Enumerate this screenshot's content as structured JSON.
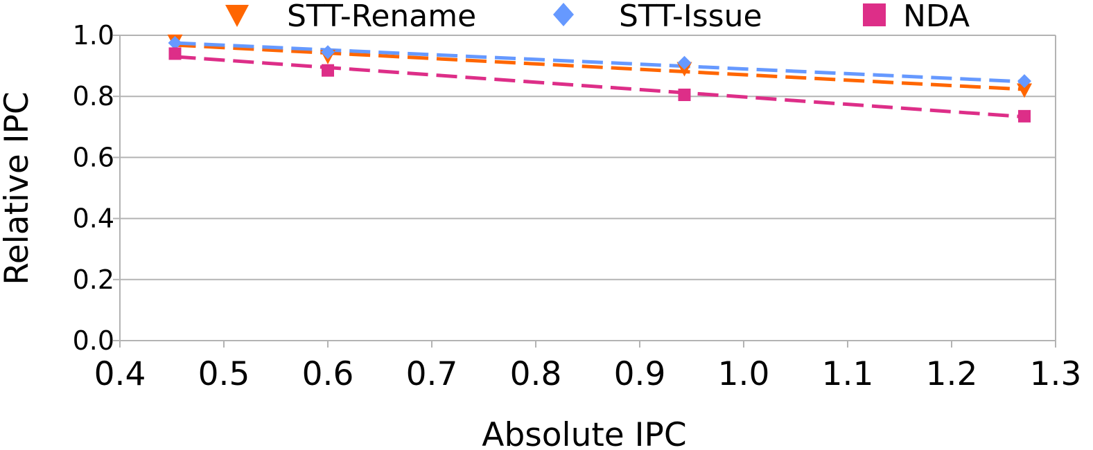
{
  "chart_data": {
    "type": "line",
    "xlabel": "Absolute IPC",
    "ylabel": "Relative IPC",
    "xlim": [
      0.4,
      1.3
    ],
    "ylim": [
      0.0,
      1.0
    ],
    "x_ticks": [
      "0.4",
      "0.5",
      "0.6",
      "0.7",
      "0.8",
      "0.9",
      "1.0",
      "1.1",
      "1.2",
      "1.3"
    ],
    "y_ticks": [
      "0.0",
      "0.2",
      "0.4",
      "0.6",
      "0.8",
      "1.0"
    ],
    "grid": "horizontal",
    "legend_position": "top",
    "series": [
      {
        "name": "STT-Rename",
        "marker": "triangle-down",
        "color": "#ff6600",
        "points": [
          {
            "x": 0.453,
            "y": 0.98
          },
          {
            "x": 0.6,
            "y": 0.93
          },
          {
            "x": 0.943,
            "y": 0.89
          },
          {
            "x": 1.27,
            "y": 0.82
          }
        ],
        "trendline": [
          {
            "x": 0.453,
            "y": 0.968
          },
          {
            "x": 1.27,
            "y": 0.823
          }
        ]
      },
      {
        "name": "STT-Issue",
        "marker": "diamond",
        "color": "#6699ff",
        "points": [
          {
            "x": 0.453,
            "y": 0.975
          },
          {
            "x": 0.6,
            "y": 0.945
          },
          {
            "x": 0.943,
            "y": 0.91
          },
          {
            "x": 1.27,
            "y": 0.85
          }
        ],
        "trendline": [
          {
            "x": 0.453,
            "y": 0.975
          },
          {
            "x": 1.27,
            "y": 0.848
          }
        ]
      },
      {
        "name": "NDA",
        "marker": "square",
        "color": "#dd2e88",
        "points": [
          {
            "x": 0.453,
            "y": 0.94
          },
          {
            "x": 0.6,
            "y": 0.885
          },
          {
            "x": 0.943,
            "y": 0.805
          },
          {
            "x": 1.27,
            "y": 0.735
          }
        ],
        "trendline": [
          {
            "x": 0.453,
            "y": 0.93
          },
          {
            "x": 1.27,
            "y": 0.733
          }
        ]
      }
    ]
  }
}
